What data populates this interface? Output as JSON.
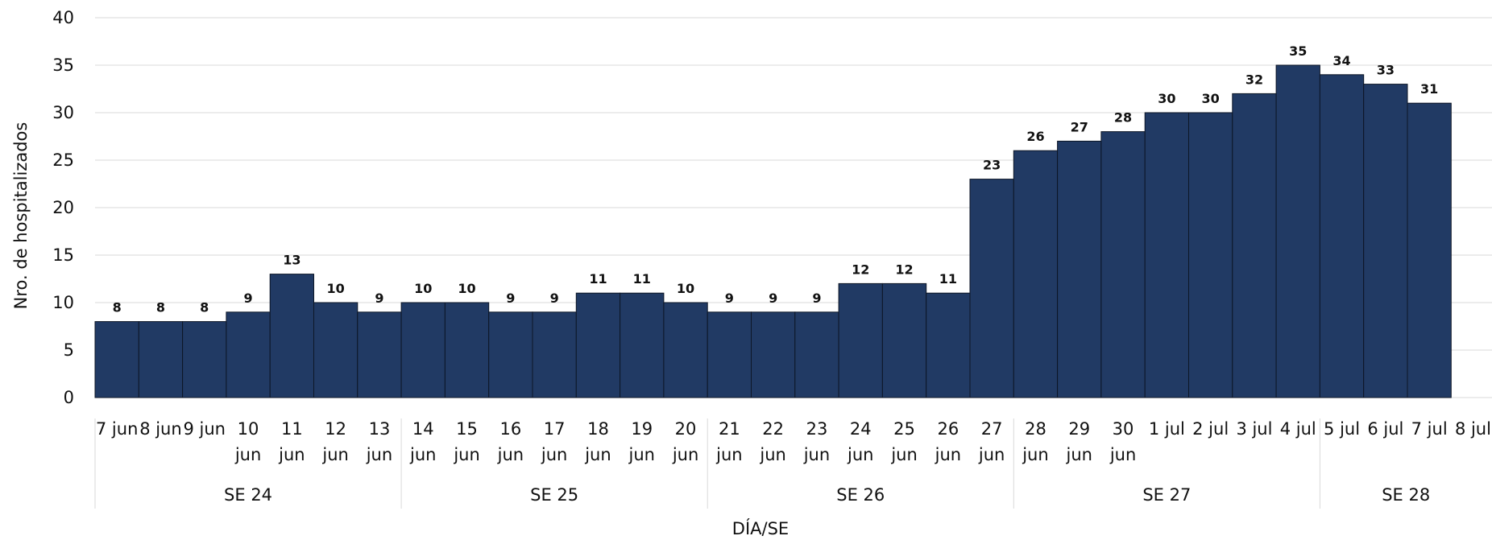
{
  "chart_data": {
    "type": "bar",
    "title": "",
    "xlabel": "DÍA/SE",
    "ylabel": "Nro. de  hospitalizados",
    "ylim": [
      0,
      40
    ],
    "yticks": [
      "0",
      "5",
      "10",
      "15",
      "20",
      "25",
      "30",
      "35",
      "40"
    ],
    "grid": true,
    "bar_color": "#213a64",
    "categories": [
      [
        "7 jun"
      ],
      [
        "8 jun"
      ],
      [
        "9 jun"
      ],
      [
        "10",
        "jun"
      ],
      [
        "11",
        "jun"
      ],
      [
        "12",
        "jun"
      ],
      [
        "13",
        "jun"
      ],
      [
        "14",
        "jun"
      ],
      [
        "15",
        "jun"
      ],
      [
        "16",
        "jun"
      ],
      [
        "17",
        "jun"
      ],
      [
        "18",
        "jun"
      ],
      [
        "19",
        "jun"
      ],
      [
        "20",
        "jun"
      ],
      [
        "21",
        "jun"
      ],
      [
        "22",
        "jun"
      ],
      [
        "23",
        "jun"
      ],
      [
        "24",
        "jun"
      ],
      [
        "25",
        "jun"
      ],
      [
        "26",
        "jun"
      ],
      [
        "27",
        "jun"
      ],
      [
        "28",
        "jun"
      ],
      [
        "29",
        "jun"
      ],
      [
        "30",
        "jun"
      ],
      [
        "1 jul"
      ],
      [
        "2 jul"
      ],
      [
        "3 jul"
      ],
      [
        "4 jul"
      ],
      [
        "5 jul"
      ],
      [
        "6 jul"
      ],
      [
        "7 jul"
      ],
      [
        "8 jul"
      ]
    ],
    "values": [
      8,
      8,
      8,
      9,
      13,
      10,
      9,
      10,
      10,
      9,
      9,
      11,
      11,
      10,
      9,
      9,
      9,
      12,
      12,
      11,
      23,
      26,
      27,
      28,
      30,
      30,
      32,
      35,
      34,
      33,
      31,
      null
    ],
    "groups": [
      {
        "label": "SE 24",
        "count": 7
      },
      {
        "label": "SE 25",
        "count": 7
      },
      {
        "label": "SE 26",
        "count": 7
      },
      {
        "label": "SE 27",
        "count": 7
      },
      {
        "label": "SE 28",
        "count": 4
      }
    ]
  }
}
